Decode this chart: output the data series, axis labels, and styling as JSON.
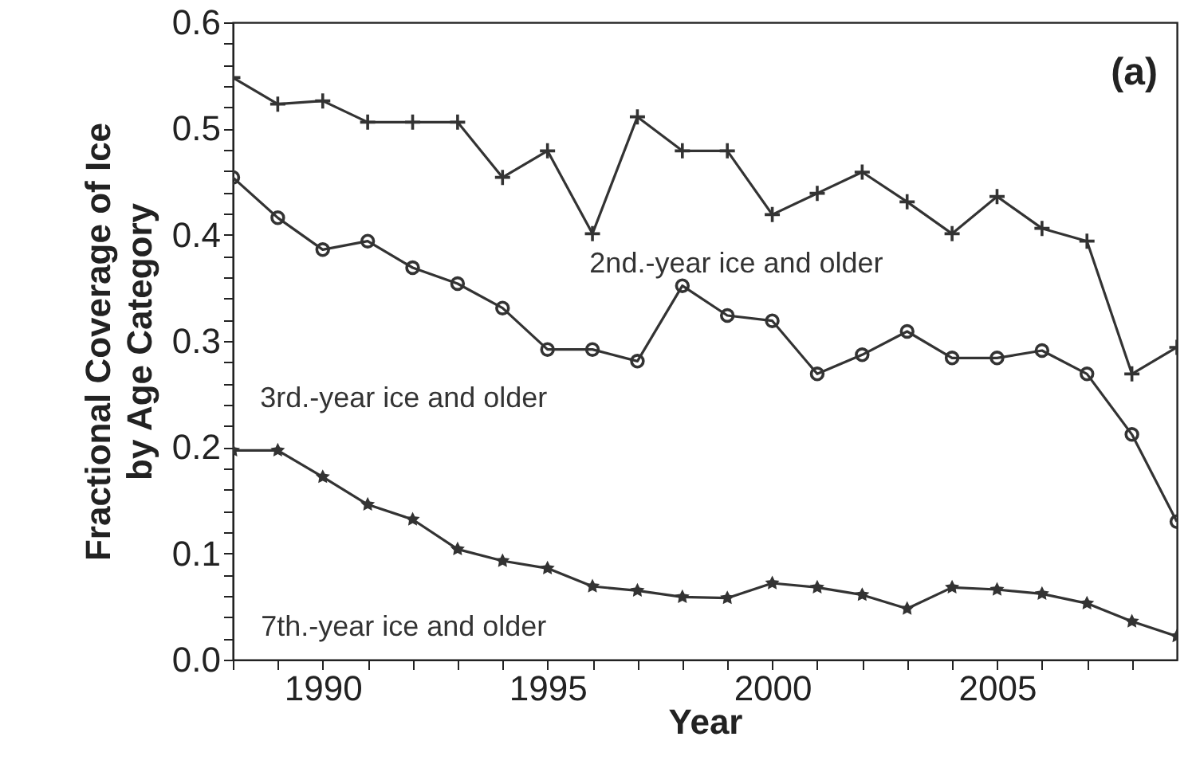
{
  "chart_data": {
    "type": "line",
    "xlabel": "Year",
    "ylabel": "Fractional Coverage of Ice\nby Age Category",
    "annotations": [
      "(a)"
    ],
    "x": [
      1988,
      1989,
      1990,
      1991,
      1992,
      1993,
      1994,
      1995,
      1996,
      1997,
      1998,
      1999,
      2000,
      2001,
      2002,
      2003,
      2004,
      2005,
      2006,
      2007,
      2008,
      2009
    ],
    "series": [
      {
        "name": "2nd.-year ice and older",
        "color": "#333333",
        "marker": "cross",
        "values": [
          0.548,
          0.523,
          0.526,
          0.506,
          0.506,
          0.506,
          0.454,
          0.479,
          0.401,
          0.511,
          0.479,
          0.479,
          0.419,
          0.439,
          0.459,
          0.431,
          0.401,
          0.436,
          0.406,
          0.394,
          0.269,
          0.294
        ]
      },
      {
        "name": "3rd.-year ice and older",
        "color": "#333333",
        "marker": "circle",
        "values": [
          0.454,
          0.416,
          0.386,
          0.394,
          0.369,
          0.354,
          0.331,
          0.292,
          0.292,
          0.281,
          0.352,
          0.324,
          0.319,
          0.269,
          0.287,
          0.309,
          0.284,
          0.284,
          0.291,
          0.269,
          0.212,
          0.13
        ]
      },
      {
        "name": "7th.-year ice and older",
        "color": "#333333",
        "marker": "star",
        "values": [
          0.197,
          0.197,
          0.172,
          0.146,
          0.132,
          0.104,
          0.093,
          0.086,
          0.069,
          0.065,
          0.059,
          0.058,
          0.072,
          0.068,
          0.061,
          0.048,
          0.068,
          0.066,
          0.062,
          0.053,
          0.036,
          0.022
        ]
      }
    ],
    "xlim": [
      1988,
      2009
    ],
    "xticks": [
      {
        "value": 1988,
        "label": null
      },
      {
        "value": 1989,
        "label": null
      },
      1990,
      {
        "value": 1991,
        "label": null
      },
      {
        "value": 1992,
        "label": null
      },
      {
        "value": 1993,
        "label": null
      },
      {
        "value": 1994,
        "label": null
      },
      1995,
      {
        "value": 1996,
        "label": null
      },
      {
        "value": 1997,
        "label": null
      },
      {
        "value": 1998,
        "label": null
      },
      {
        "value": 1999,
        "label": null
      },
      2000,
      {
        "value": 2001,
        "label": null
      },
      {
        "value": 2002,
        "label": null
      },
      {
        "value": 2003,
        "label": null
      },
      {
        "value": 2004,
        "label": null
      },
      2005,
      {
        "value": 2006,
        "label": null
      },
      {
        "value": 2007,
        "label": null
      },
      {
        "value": 2008,
        "label": null
      }
    ],
    "ylim": [
      0,
      0.6
    ],
    "yticks": [
      {
        "value": 0,
        "label": "0.0"
      },
      {
        "value": 0.02,
        "label": null
      },
      {
        "value": 0.04,
        "label": null
      },
      {
        "value": 0.06,
        "label": null
      },
      {
        "value": 0.08,
        "label": null
      },
      0.1,
      {
        "value": 0.12,
        "label": null
      },
      {
        "value": 0.14,
        "label": null
      },
      {
        "value": 0.16,
        "label": null
      },
      {
        "value": 0.18,
        "label": null
      },
      0.2,
      {
        "value": 0.22,
        "label": null
      },
      {
        "value": 0.24,
        "label": null
      },
      {
        "value": 0.26,
        "label": null
      },
      {
        "value": 0.28,
        "label": null
      },
      0.3,
      {
        "value": 0.32,
        "label": null
      },
      {
        "value": 0.34,
        "label": null
      },
      {
        "value": 0.36,
        "label": null
      },
      {
        "value": 0.38,
        "label": null
      },
      0.4,
      {
        "value": 0.42,
        "label": null
      },
      {
        "value": 0.44,
        "label": null
      },
      {
        "value": 0.46,
        "label": null
      },
      {
        "value": 0.48,
        "label": null
      },
      0.5,
      {
        "value": 0.52,
        "label": null
      },
      {
        "value": 0.54,
        "label": null
      },
      {
        "value": 0.56,
        "label": null
      },
      {
        "value": 0.58,
        "label": null
      },
      0.6
    ],
    "grid": false,
    "legend": false,
    "line_style": "solid"
  }
}
